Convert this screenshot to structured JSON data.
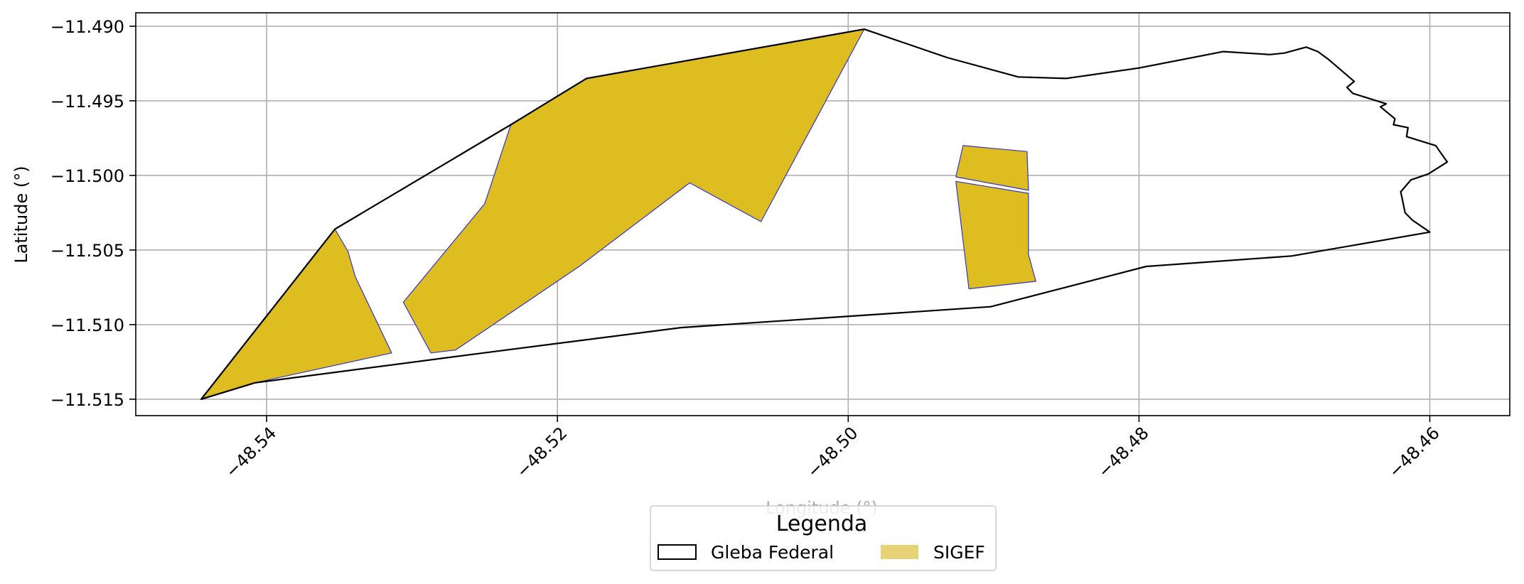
{
  "chart_data": {
    "type": "map",
    "xlabel": "Longitude (°)",
    "ylabel": "Latitude (°)",
    "xlim": [
      -48.549,
      -48.4545
    ],
    "ylim": [
      -11.5161,
      -11.4891
    ],
    "x_ticks": [
      -48.54,
      -48.52,
      -48.5,
      -48.48,
      -48.46
    ],
    "x_tick_labels": [
      "−48.54",
      "−48.52",
      "−48.50",
      "−48.48",
      "−48.46"
    ],
    "y_ticks": [
      -11.49,
      -11.495,
      -11.5,
      -11.505,
      -11.51,
      -11.515
    ],
    "y_tick_labels": [
      "−11.490",
      "−11.495",
      "−11.500",
      "−11.505",
      "−11.510",
      "−11.515"
    ],
    "grid": true,
    "legend": {
      "title": "Legenda",
      "placement": "bottom-center",
      "entries": [
        {
          "name": "Gleba Federal",
          "style": "outline",
          "color": "#000000"
        },
        {
          "name": "SIGEF",
          "style": "fill",
          "color": "#e8d277"
        }
      ]
    },
    "colors": {
      "gleba_edge": "#000000",
      "sigef_fill": "#debd21",
      "sigef_edge": "#3333cc",
      "grid": "#b0b0b0"
    },
    "series": [
      {
        "name": "Gleba Federal",
        "type": "polygon",
        "points": [
          [
            -48.5445,
            -11.515
          ],
          [
            -48.5408,
            -11.5139
          ],
          [
            -48.5251,
            -11.5119
          ],
          [
            -48.5115,
            -11.5102
          ],
          [
            -48.4902,
            -11.5088
          ],
          [
            -48.4795,
            -11.5061
          ],
          [
            -48.4695,
            -11.5054
          ],
          [
            -48.46,
            -11.5038
          ],
          [
            -48.4612,
            -11.503
          ],
          [
            -48.4617,
            -11.5025
          ],
          [
            -48.462,
            -11.5011
          ],
          [
            -48.4613,
            -11.5003
          ],
          [
            -48.4601,
            -11.4999
          ],
          [
            -48.4588,
            -11.4991
          ],
          [
            -48.4596,
            -11.498
          ],
          [
            -48.4616,
            -11.4974
          ],
          [
            -48.4615,
            -11.4968
          ],
          [
            -48.4625,
            -11.4966
          ],
          [
            -48.4624,
            -11.4962
          ],
          [
            -48.4629,
            -11.4958
          ],
          [
            -48.4634,
            -11.4954
          ],
          [
            -48.463,
            -11.4952
          ],
          [
            -48.4653,
            -11.4945
          ],
          [
            -48.4657,
            -11.4941
          ],
          [
            -48.4652,
            -11.4937
          ],
          [
            -48.467,
            -11.4922
          ],
          [
            -48.4677,
            -11.4917
          ],
          [
            -48.4685,
            -11.4914
          ],
          [
            -48.47,
            -11.4918
          ],
          [
            -48.471,
            -11.4919
          ],
          [
            -48.4742,
            -11.4917
          ],
          [
            -48.48,
            -11.4928
          ],
          [
            -48.485,
            -11.4935
          ],
          [
            -48.4883,
            -11.4934
          ],
          [
            -48.4932,
            -11.4921
          ],
          [
            -48.4989,
            -11.4902
          ],
          [
            -48.518,
            -11.4935
          ],
          [
            -48.5232,
            -11.4966
          ],
          [
            -48.5353,
            -11.5036
          ],
          [
            -48.5445,
            -11.515
          ]
        ]
      },
      {
        "name": "SIGEF",
        "type": "polygon",
        "points": [
          [
            -48.5445,
            -11.515
          ],
          [
            -48.5353,
            -11.5036
          ],
          [
            -48.5344,
            -11.5051
          ],
          [
            -48.5339,
            -11.5068
          ],
          [
            -48.5314,
            -11.5119
          ],
          [
            -48.5408,
            -11.5139
          ]
        ]
      },
      {
        "name": "SIGEF",
        "type": "polygon",
        "points": [
          [
            -48.5287,
            -11.5119
          ],
          [
            -48.527,
            -11.5117
          ],
          [
            -48.5185,
            -11.5061
          ],
          [
            -48.5109,
            -11.5005
          ],
          [
            -48.506,
            -11.5031
          ],
          [
            -48.4989,
            -11.4902
          ],
          [
            -48.518,
            -11.4935
          ],
          [
            -48.5232,
            -11.4966
          ],
          [
            -48.5232,
            -11.4966
          ],
          [
            -48.525,
            -11.5019
          ],
          [
            -48.5306,
            -11.5085
          ]
        ]
      },
      {
        "name": "SIGEF",
        "type": "polygon",
        "points": [
          [
            -48.4926,
            -11.5001
          ],
          [
            -48.4921,
            -11.498
          ],
          [
            -48.4877,
            -11.4984
          ],
          [
            -48.4876,
            -11.501
          ]
        ]
      },
      {
        "name": "SIGEF",
        "type": "polygon",
        "points": [
          [
            -48.4926,
            -11.5004
          ],
          [
            -48.4876,
            -11.5012
          ],
          [
            -48.4876,
            -11.5053
          ],
          [
            -48.4871,
            -11.5071
          ],
          [
            -48.4917,
            -11.5076
          ]
        ]
      }
    ]
  }
}
